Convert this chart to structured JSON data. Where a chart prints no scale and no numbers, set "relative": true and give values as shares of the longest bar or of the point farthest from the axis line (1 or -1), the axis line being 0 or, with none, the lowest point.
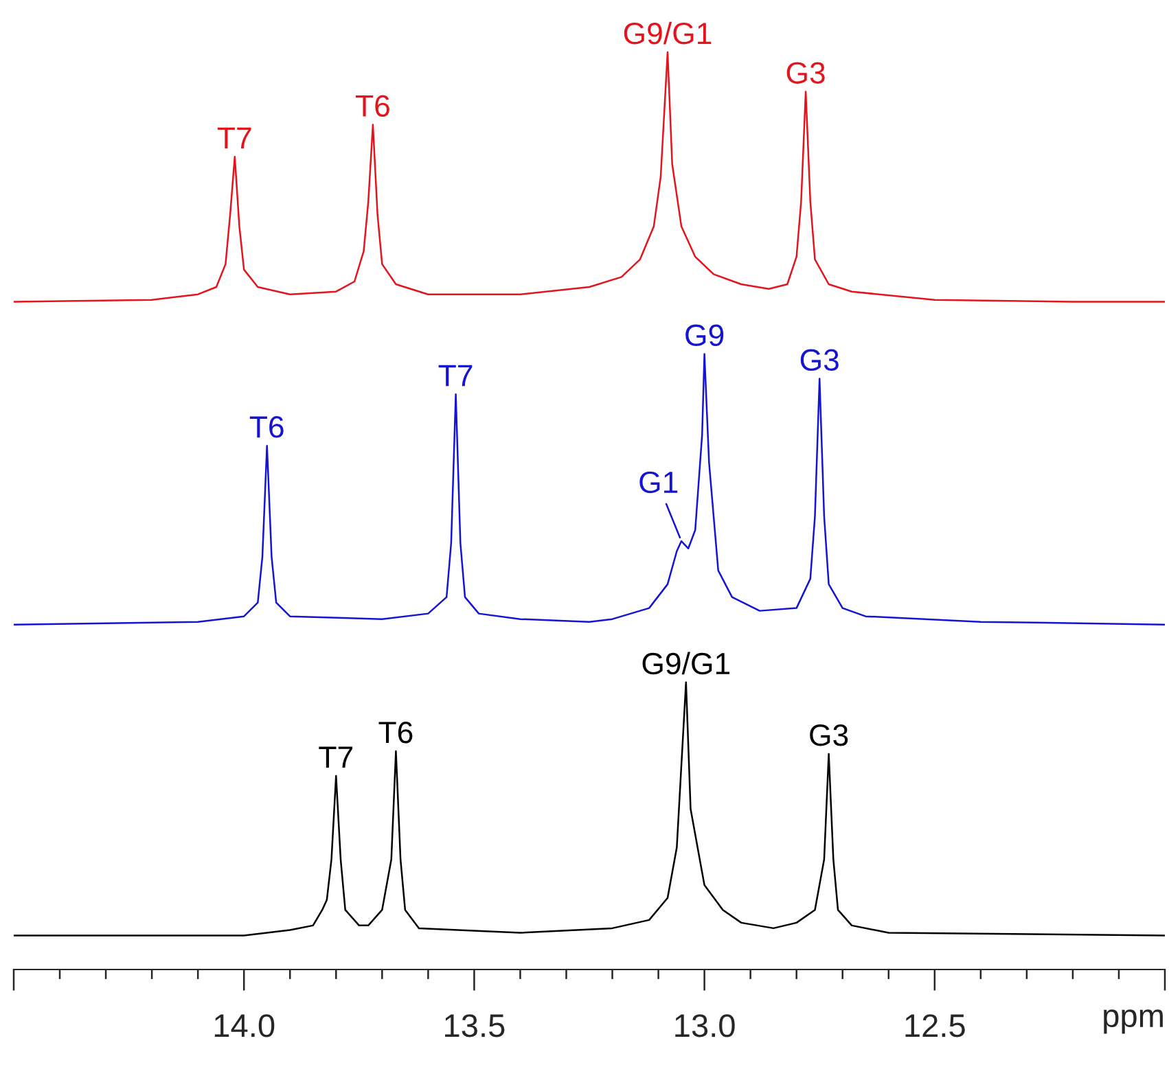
{
  "chart_data": {
    "type": "line",
    "relative": true,
    "tick_labels": "x",
    "xlim": [
      14.5,
      12.0
    ],
    "xlabel": "ppm",
    "grid": false,
    "marker": "none",
    "line_style": "solid",
    "xticks": [
      {
        "value": 14.5,
        "label": null
      },
      {
        "value": 14.4,
        "label": null
      },
      {
        "value": 14.3,
        "label": null
      },
      {
        "value": 14.2,
        "label": null
      },
      {
        "value": 14.1,
        "label": null
      },
      {
        "value": 14.0,
        "label": "14.0"
      },
      {
        "value": 13.9,
        "label": null
      },
      {
        "value": 13.8,
        "label": null
      },
      {
        "value": 13.7,
        "label": null
      },
      {
        "value": 13.6,
        "label": null
      },
      {
        "value": 13.5,
        "label": "13.5"
      },
      {
        "value": 13.4,
        "label": null
      },
      {
        "value": 13.3,
        "label": null
      },
      {
        "value": 13.2,
        "label": null
      },
      {
        "value": 13.1,
        "label": null
      },
      {
        "value": 13.0,
        "label": "13.0"
      },
      {
        "value": 12.9,
        "label": null
      },
      {
        "value": 12.8,
        "label": null
      },
      {
        "value": 12.7,
        "label": null
      },
      {
        "value": 12.6,
        "label": null
      },
      {
        "value": 12.5,
        "label": "12.5"
      },
      {
        "value": 12.4,
        "label": null
      },
      {
        "value": 12.3,
        "label": null
      },
      {
        "value": 12.2,
        "label": null
      },
      {
        "value": 12.1,
        "label": null
      },
      {
        "value": 12.0,
        "label": null
      }
    ],
    "series": [
      {
        "color": "#e3141c",
        "x": [
          14.5,
          14.2,
          14.1,
          14.06,
          14.04,
          14.03,
          14.02,
          14.01,
          14.0,
          13.97,
          13.9,
          13.8,
          13.76,
          13.74,
          13.73,
          13.72,
          13.71,
          13.7,
          13.67,
          13.6,
          13.4,
          13.25,
          13.18,
          13.14,
          13.11,
          13.095,
          13.08,
          13.07,
          13.05,
          13.02,
          12.98,
          12.92,
          12.86,
          12.82,
          12.8,
          12.79,
          12.78,
          12.77,
          12.76,
          12.73,
          12.68,
          12.5,
          12.2,
          12.0
        ],
        "values": [
          0.728,
          0.73,
          0.736,
          0.744,
          0.769,
          0.823,
          0.886,
          0.81,
          0.763,
          0.744,
          0.736,
          0.739,
          0.75,
          0.783,
          0.837,
          0.921,
          0.823,
          0.769,
          0.747,
          0.736,
          0.736,
          0.744,
          0.755,
          0.774,
          0.81,
          0.864,
          1.0,
          0.878,
          0.81,
          0.777,
          0.758,
          0.747,
          0.742,
          0.747,
          0.777,
          0.837,
          0.957,
          0.837,
          0.774,
          0.747,
          0.739,
          0.73,
          0.728,
          0.728
        ]
      },
      {
        "color": "#1414d2",
        "x": [
          14.5,
          14.1,
          14.0,
          13.97,
          13.96,
          13.95,
          13.94,
          13.93,
          13.9,
          13.7,
          13.6,
          13.56,
          13.55,
          13.54,
          13.53,
          13.52,
          13.49,
          13.4,
          13.25,
          13.2,
          13.12,
          13.08,
          13.06,
          13.05,
          13.035,
          13.02,
          13.005,
          13.0,
          12.99,
          12.97,
          12.94,
          12.88,
          12.8,
          12.77,
          12.76,
          12.75,
          12.74,
          12.73,
          12.7,
          12.65,
          12.4,
          12.0
        ],
        "values": [
          0.376,
          0.379,
          0.385,
          0.4,
          0.45,
          0.571,
          0.45,
          0.4,
          0.385,
          0.382,
          0.388,
          0.406,
          0.465,
          0.627,
          0.465,
          0.406,
          0.388,
          0.382,
          0.379,
          0.382,
          0.394,
          0.42,
          0.456,
          0.467,
          0.459,
          0.479,
          0.583,
          0.671,
          0.553,
          0.435,
          0.406,
          0.391,
          0.394,
          0.426,
          0.494,
          0.644,
          0.494,
          0.42,
          0.394,
          0.385,
          0.379,
          0.376
        ]
      },
      {
        "color": "#000000",
        "x": [
          14.5,
          14.0,
          13.9,
          13.85,
          13.83,
          13.82,
          13.81,
          13.8,
          13.79,
          13.78,
          13.75,
          13.73,
          13.7,
          13.68,
          13.67,
          13.66,
          13.65,
          13.62,
          13.4,
          13.2,
          13.12,
          13.08,
          13.06,
          13.04,
          13.03,
          13.0,
          12.96,
          12.92,
          12.85,
          12.8,
          12.76,
          12.74,
          12.73,
          12.72,
          12.71,
          12.68,
          12.6,
          12.0
        ],
        "values": [
          0.037,
          0.037,
          0.043,
          0.048,
          0.065,
          0.076,
          0.12,
          0.211,
          0.12,
          0.065,
          0.048,
          0.048,
          0.065,
          0.12,
          0.238,
          0.12,
          0.065,
          0.045,
          0.04,
          0.045,
          0.054,
          0.078,
          0.133,
          0.313,
          0.175,
          0.092,
          0.065,
          0.051,
          0.045,
          0.051,
          0.065,
          0.12,
          0.235,
          0.12,
          0.065,
          0.048,
          0.04,
          0.037
        ]
      }
    ],
    "annotations": [
      {
        "text": "T7",
        "x": 14.02,
        "y": 0.886
      },
      {
        "text": "T6",
        "x": 13.72,
        "y": 0.921
      },
      {
        "text": "G9/G1",
        "x": 13.08,
        "y": 1.0
      },
      {
        "text": "G3",
        "x": 12.78,
        "y": 0.957
      },
      {
        "text": "T6",
        "x": 13.95,
        "y": 0.571
      },
      {
        "text": "T7",
        "x": 13.54,
        "y": 0.627
      },
      {
        "text": "G1",
        "x": 13.05,
        "y": 0.467
      },
      {
        "text": "G9",
        "x": 13.0,
        "y": 0.671
      },
      {
        "text": "G3",
        "x": 12.75,
        "y": 0.644
      },
      {
        "text": "T7",
        "x": 13.8,
        "y": 0.211
      },
      {
        "text": "T6",
        "x": 13.67,
        "y": 0.238
      },
      {
        "text": "G9/G1",
        "x": 13.04,
        "y": 0.313
      },
      {
        "text": "G3",
        "x": 12.73,
        "y": 0.235
      }
    ]
  }
}
